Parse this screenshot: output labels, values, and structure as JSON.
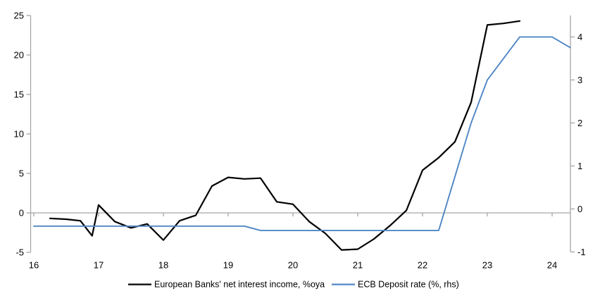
{
  "chart_data": {
    "type": "line",
    "title": "",
    "x_axis": {
      "ticks": [
        16,
        17,
        18,
        19,
        20,
        21,
        22,
        23,
        24
      ],
      "min": 16,
      "max": 24.3,
      "note": "years 2016-2024, quarterly frequency"
    },
    "left_y_axis": {
      "ticks": [
        25,
        20,
        15,
        10,
        5,
        0,
        -5
      ],
      "min": -5,
      "max": 25
    },
    "right_y_axis": {
      "ticks": [
        4,
        3,
        2,
        1,
        0,
        -1
      ],
      "min": -1,
      "max": 4.5
    },
    "grid": "single horizontal line at zero only",
    "legend_position": "bottom-center",
    "series": [
      {
        "name": "European Banks' net interest income, %oya",
        "axis": "left",
        "color": "#000000",
        "points": [
          [
            16.25,
            -0.7
          ],
          [
            16.5,
            -0.8
          ],
          [
            16.72,
            -1.0
          ],
          [
            16.9,
            -2.9
          ],
          [
            17.0,
            1.0
          ],
          [
            17.25,
            -1.1
          ],
          [
            17.5,
            -1.9
          ],
          [
            17.75,
            -1.4
          ],
          [
            18.0,
            -3.45
          ],
          [
            18.25,
            -1.0
          ],
          [
            18.5,
            -0.3
          ],
          [
            18.75,
            3.4
          ],
          [
            19.0,
            4.5
          ],
          [
            19.25,
            4.3
          ],
          [
            19.5,
            4.4
          ],
          [
            19.75,
            1.4
          ],
          [
            20.0,
            1.1
          ],
          [
            20.25,
            -1.1
          ],
          [
            20.5,
            -2.6
          ],
          [
            20.75,
            -4.7
          ],
          [
            21.0,
            -4.6
          ],
          [
            21.25,
            -3.3
          ],
          [
            21.5,
            -1.6
          ],
          [
            21.75,
            0.3
          ],
          [
            22.0,
            5.4
          ],
          [
            22.25,
            7.0
          ],
          [
            22.5,
            9.0
          ],
          [
            22.75,
            14.0
          ],
          [
            23.0,
            23.8
          ],
          [
            23.25,
            24.0
          ],
          [
            23.5,
            24.3
          ]
        ]
      },
      {
        "name": "ECB Deposit rate (%, rhs)",
        "axis": "right",
        "color": "#4f86c6",
        "points": [
          [
            16.0,
            -0.4
          ],
          [
            19.25,
            -0.4
          ],
          [
            19.5,
            -0.5
          ],
          [
            22.25,
            -0.5
          ],
          [
            22.5,
            0.75
          ],
          [
            22.75,
            2.0
          ],
          [
            23.0,
            3.0
          ],
          [
            23.25,
            3.5
          ],
          [
            23.5,
            4.0
          ],
          [
            24.0,
            4.0
          ],
          [
            24.28,
            3.75
          ]
        ]
      }
    ]
  },
  "colors": {
    "background": "#ffffff",
    "axis": "#a6a6a6",
    "zero_gridline": "#a6a6a6",
    "tick_text": "#000000",
    "series_left": "#000000",
    "series_right": "#4f86c6"
  }
}
